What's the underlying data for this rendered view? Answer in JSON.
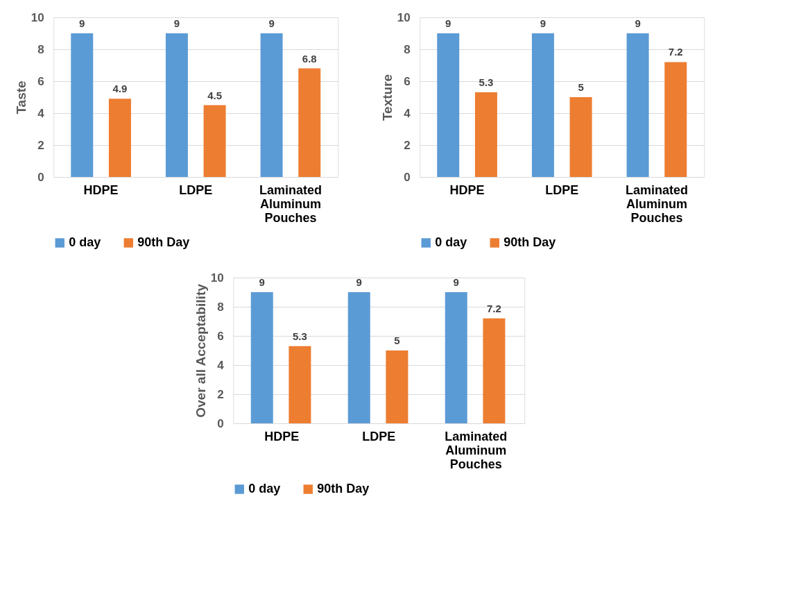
{
  "chart_data": [
    {
      "type": "bar",
      "ylabel": "Taste",
      "categories": [
        "HDPE",
        "LDPE",
        "Laminated Aluminum Pouches"
      ],
      "ylim": [
        0,
        10
      ],
      "yticks": [
        0,
        2,
        4,
        6,
        8,
        10
      ],
      "grid": "y",
      "legend": "bottom",
      "data_labels": true,
      "series": [
        {
          "name": "0 day",
          "color": "#5b9bd5",
          "values": [
            9,
            9,
            9
          ]
        },
        {
          "name": "90th Day",
          "color": "#ed7d31",
          "values": [
            4.9,
            4.5,
            6.8
          ]
        }
      ]
    },
    {
      "type": "bar",
      "ylabel": "Texture",
      "categories": [
        "HDPE",
        "LDPE",
        "Laminated Aluminum Pouches"
      ],
      "ylim": [
        0,
        10
      ],
      "yticks": [
        0,
        2,
        4,
        6,
        8,
        10
      ],
      "grid": "y",
      "legend": "bottom",
      "data_labels": true,
      "series": [
        {
          "name": "0 day",
          "color": "#5b9bd5",
          "values": [
            9,
            9,
            9
          ]
        },
        {
          "name": "90th Day",
          "color": "#ed7d31",
          "values": [
            5.3,
            5,
            7.2
          ]
        }
      ]
    },
    {
      "type": "bar",
      "ylabel": "Over all Acceptability",
      "categories": [
        "HDPE",
        "LDPE",
        "Laminated Aluminum Pouches"
      ],
      "ylim": [
        0,
        10
      ],
      "yticks": [
        0,
        2,
        4,
        6,
        8,
        10
      ],
      "grid": "y",
      "legend": "bottom",
      "data_labels": true,
      "series": [
        {
          "name": "0 day",
          "color": "#5b9bd5",
          "values": [
            9,
            9,
            9
          ]
        },
        {
          "name": "90th Day",
          "color": "#ed7d31",
          "values": [
            5.3,
            5,
            7.2
          ]
        }
      ]
    }
  ]
}
